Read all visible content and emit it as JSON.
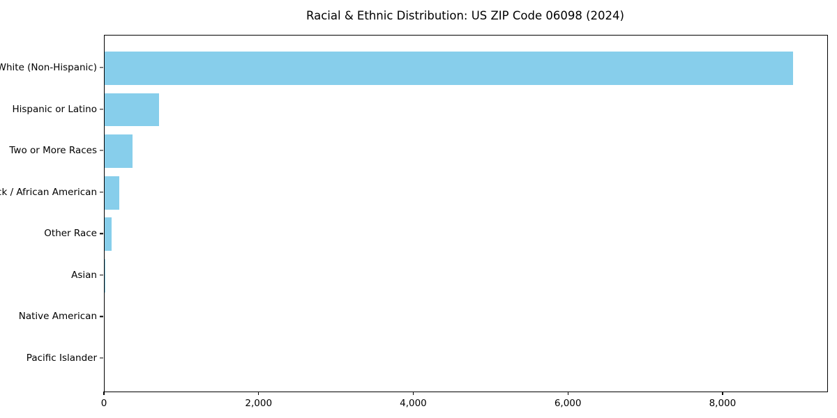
{
  "chart_data": {
    "type": "bar",
    "orientation": "horizontal",
    "title": "Racial & Ethnic Distribution: US ZIP Code 06098 (2024)",
    "categories": [
      "White (Non-Hispanic)",
      "Hispanic or Latino",
      "Two or More Races",
      "Black / African American",
      "Other Race",
      "Asian",
      "Native American",
      "Pacific Islander"
    ],
    "values": [
      8900,
      700,
      360,
      190,
      90,
      10,
      0,
      0
    ],
    "xlabel": "",
    "ylabel": "",
    "xlim": [
      0,
      9345
    ],
    "x_ticks": [
      0,
      2000,
      4000,
      6000,
      8000
    ],
    "x_tick_labels": [
      "0",
      "2,000",
      "4,000",
      "6,000",
      "8,000"
    ],
    "grid": false,
    "legend_position": "none",
    "bar_color": "#87CEEB",
    "background_color": "#ffffff",
    "axis_color": "#000000"
  }
}
